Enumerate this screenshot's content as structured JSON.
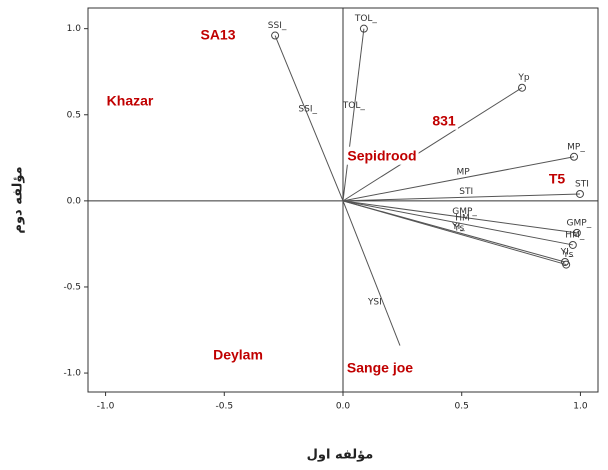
{
  "chart_data": {
    "type": "biplot",
    "x_label": "مؤلفه اول",
    "y_label": "مؤلفه دوم",
    "xlim": [
      -1.074,
      1.074
    ],
    "ylim": [
      -1.11,
      1.12
    ],
    "xticks": [
      {
        "value": -1,
        "label": "-1.0"
      },
      {
        "value": -0.5,
        "label": "-0.5"
      },
      {
        "value": 0,
        "label": "0.0"
      },
      {
        "value": 0.5,
        "label": "0.5"
      },
      {
        "value": 1,
        "label": "1.0"
      }
    ],
    "yticks": [
      {
        "value": -1,
        "label": "-1.0"
      },
      {
        "value": -0.5,
        "label": "-0.5"
      },
      {
        "value": 0,
        "label": "0.0"
      },
      {
        "value": 0.5,
        "label": "0.5"
      },
      {
        "value": 1,
        "label": "1.0"
      }
    ],
    "labels": [
      "SSI_",
      "TOL_",
      "Yp",
      "MP_",
      "STI",
      "GMP_",
      "HM_",
      "YI_",
      "Ys",
      "YSI"
    ],
    "x": [
      -0.286,
      0.088,
      0.754,
      0.973,
      0.998,
      0.985,
      0.968,
      0.935,
      0.94,
      0.24
    ],
    "y": [
      0.96,
      1.0,
      0.657,
      0.256,
      0.04,
      -0.186,
      -0.256,
      -0.355,
      -0.37,
      -0.84
    ],
    "inner_labels": [
      "SSI_",
      "TOL_",
      null,
      "MP",
      "STI",
      "GMP_",
      "HM",
      "YI_",
      "Ys",
      null
    ],
    "markers": [
      true,
      true,
      true,
      true,
      true,
      true,
      true,
      true,
      true,
      false
    ],
    "annotations": [
      "SA13",
      "Khazar",
      "831",
      "Sepidrood",
      "T5",
      "Deylam",
      "Sange joe"
    ],
    "color": "#555555"
  }
}
